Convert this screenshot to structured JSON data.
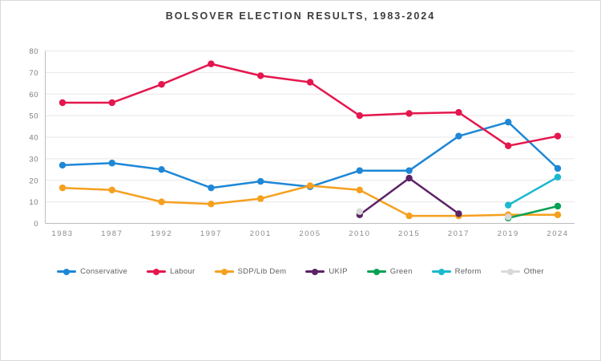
{
  "title": "BOLSOVER ELECTION RESULTS, 1983-2024",
  "chart_data": {
    "type": "line",
    "title": "BOLSOVER ELECTION RESULTS, 1983-2024",
    "x": [
      "1983",
      "1987",
      "1992",
      "1997",
      "2001",
      "2005",
      "2010",
      "2015",
      "2017",
      "2019",
      "2024"
    ],
    "xlabel": "",
    "ylabel": "",
    "ylim": [
      0,
      80
    ],
    "yticks": [
      0,
      10,
      20,
      30,
      40,
      50,
      60,
      70,
      80
    ],
    "grid": true,
    "legend_position": "bottom",
    "series": [
      {
        "name": "Conservative",
        "color": "#1e87d6",
        "values": [
          27,
          28,
          25,
          16.5,
          19.5,
          17,
          24.5,
          24.5,
          40.5,
          47,
          25.5
        ]
      },
      {
        "name": "Labour",
        "color": "#e4164d",
        "values": [
          56,
          56,
          64.5,
          74,
          68.5,
          65.5,
          50,
          51,
          51.5,
          36,
          40.5
        ]
      },
      {
        "name": "SDP/Lib Dem",
        "color": "#f5a01e",
        "values": [
          16.5,
          15.5,
          10,
          9,
          11.5,
          17.5,
          15.5,
          3.5,
          3.5,
          4,
          4
        ]
      },
      {
        "name": "UKIP",
        "color": "#5c2366",
        "values": [
          null,
          null,
          null,
          null,
          null,
          null,
          4,
          21,
          4.5,
          null,
          null
        ]
      },
      {
        "name": "Green",
        "color": "#05a254",
        "values": [
          null,
          null,
          null,
          null,
          null,
          null,
          null,
          null,
          null,
          2.5,
          8
        ]
      },
      {
        "name": "Reform",
        "color": "#1ab9ce",
        "values": [
          null,
          null,
          null,
          null,
          null,
          null,
          null,
          null,
          null,
          8.5,
          21.5
        ]
      },
      {
        "name": "Other",
        "color": "#d9d9d9",
        "values": [
          null,
          null,
          null,
          null,
          null,
          null,
          5.5,
          null,
          null,
          3,
          null
        ]
      }
    ]
  }
}
